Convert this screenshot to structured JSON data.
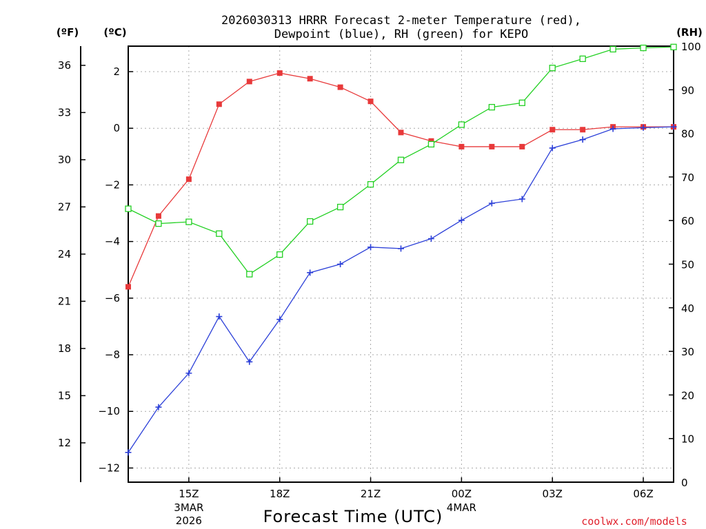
{
  "chart_data": {
    "type": "line",
    "title_line1": "2026030313 HRRR Forecast 2-meter Temperature (red),",
    "title_line2": "Dewpoint (blue), RH (green) for KEPO",
    "xlabel": "Forecast Time (UTC)",
    "credit": "coolwx.com/models",
    "left_outer_unit": "(ºF)",
    "left_inner_unit": "(ºC)",
    "right_unit": "(RH)",
    "hours": [
      13,
      14,
      15,
      16,
      17,
      18,
      19,
      20,
      21,
      22,
      23,
      24,
      25,
      26,
      27,
      28,
      29,
      30,
      31
    ],
    "xlim": [
      13,
      31
    ],
    "x_ticks": [
      {
        "hour": 15,
        "label": "15Z",
        "sub1": "3MAR",
        "sub2": "2026"
      },
      {
        "hour": 18,
        "label": "18Z",
        "sub1": "",
        "sub2": ""
      },
      {
        "hour": 21,
        "label": "21Z",
        "sub1": "",
        "sub2": ""
      },
      {
        "hour": 24,
        "label": "00Z",
        "sub1": "4MAR",
        "sub2": ""
      },
      {
        "hour": 27,
        "label": "03Z",
        "sub1": "",
        "sub2": ""
      },
      {
        "hour": 30,
        "label": "06Z",
        "sub1": "",
        "sub2": ""
      }
    ],
    "ylim_c": [
      -12.5,
      2.9
    ],
    "c_ticks": [
      2,
      0,
      -2,
      -4,
      -6,
      -8,
      -10,
      -12
    ],
    "c_tick_labels": [
      "2",
      "0",
      "−2",
      "−4",
      "−6",
      "−8",
      "−10",
      "−12"
    ],
    "f_ticks": [
      36,
      33,
      30,
      27,
      24,
      21,
      18,
      15,
      12
    ],
    "ylim_rh": [
      0,
      100
    ],
    "rh_ticks": [
      100,
      90,
      80,
      70,
      60,
      50,
      40,
      30,
      20,
      10,
      0
    ],
    "series": [
      {
        "name": "Temperature",
        "unit": "C",
        "color": "#e8393a",
        "marker": "filled-square",
        "values": [
          -5.6,
          -3.1,
          -1.8,
          0.85,
          1.65,
          1.95,
          1.75,
          1.45,
          0.95,
          -0.15,
          -0.45,
          -0.65,
          -0.65,
          -0.65,
          -0.05,
          -0.05,
          0.05,
          0.05,
          0.05
        ]
      },
      {
        "name": "Dewpoint",
        "unit": "C",
        "color": "#2b3fd8",
        "marker": "plus",
        "values": [
          -11.45,
          -9.85,
          -8.65,
          -6.65,
          -8.25,
          -6.75,
          -5.1,
          -4.8,
          -4.2,
          -4.25,
          -3.9,
          -3.25,
          -2.65,
          -2.5,
          -0.7,
          -0.4,
          -0.02,
          0.02,
          0.05
        ]
      },
      {
        "name": "RH",
        "unit": "%",
        "color": "#22d022",
        "marker": "open-square",
        "values": [
          62.7,
          59.3,
          59.7,
          57.0,
          47.7,
          52.2,
          59.8,
          63.1,
          68.3,
          73.9,
          77.5,
          82.0,
          86.0,
          87.0,
          95.0,
          97.1,
          99.3,
          99.6,
          99.8
        ]
      }
    ]
  }
}
